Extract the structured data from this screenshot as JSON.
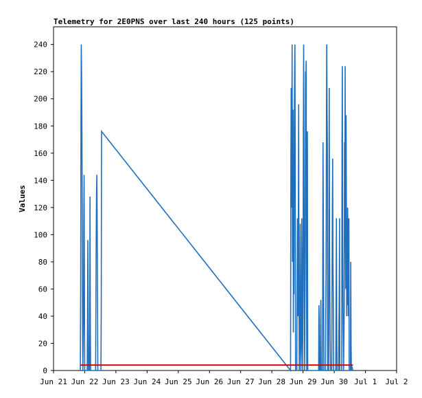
{
  "chart_data": {
    "type": "line",
    "title": "Telemetry for 2E0PNS over last 240 hours (125 points)",
    "ylabel": "Values",
    "xlabel": "",
    "ylim": [
      0,
      253
    ],
    "xlim": [
      0,
      11
    ],
    "x_ticks": [
      {
        "x": 0,
        "label": "Jun 21"
      },
      {
        "x": 1,
        "label": "Jun 22"
      },
      {
        "x": 2,
        "label": "Jun 23"
      },
      {
        "x": 3,
        "label": "Jun 24"
      },
      {
        "x": 4,
        "label": "Jun 25"
      },
      {
        "x": 5,
        "label": "Jun 26"
      },
      {
        "x": 6,
        "label": "Jun 27"
      },
      {
        "x": 7,
        "label": "Jun 28"
      },
      {
        "x": 8,
        "label": "Jun 29"
      },
      {
        "x": 9,
        "label": "Jun 30"
      },
      {
        "x": 10,
        "label": "Jul 1"
      },
      {
        "x": 11,
        "label": "Jul 2"
      }
    ],
    "y_ticks": [
      0,
      20,
      40,
      60,
      80,
      100,
      120,
      140,
      160,
      180,
      200,
      220,
      240
    ],
    "grid": false,
    "colors": {
      "series": "#1f6fbf",
      "baseline": "#e00000"
    },
    "series": [
      {
        "values": [
          [
            0.86,
            0
          ],
          [
            0.87,
            60
          ],
          [
            0.88,
            180
          ],
          [
            0.89,
            240
          ],
          [
            0.9,
            220
          ],
          [
            0.91,
            180
          ],
          [
            0.92,
            120
          ],
          [
            0.93,
            40
          ],
          [
            0.94,
            0
          ],
          [
            0.96,
            36
          ],
          [
            0.97,
            108
          ],
          [
            0.98,
            144
          ],
          [
            0.99,
            72
          ],
          [
            1.0,
            0
          ],
          [
            1.08,
            0
          ],
          [
            1.09,
            36
          ],
          [
            1.1,
            96
          ],
          [
            1.11,
            60
          ],
          [
            1.12,
            0
          ],
          [
            1.15,
            0
          ],
          [
            1.16,
            36
          ],
          [
            1.17,
            128
          ],
          [
            1.18,
            32
          ],
          [
            1.19,
            0
          ],
          [
            1.35,
            0
          ],
          [
            1.36,
            56
          ],
          [
            1.37,
            104
          ],
          [
            1.38,
            132
          ],
          [
            1.39,
            144
          ],
          [
            1.4,
            108
          ],
          [
            1.41,
            60
          ],
          [
            1.42,
            0
          ],
          [
            1.52,
            0
          ],
          [
            1.53,
            44
          ],
          [
            1.54,
            176
          ],
          [
            7.6,
            0
          ],
          [
            7.61,
            156
          ],
          [
            7.62,
            208
          ],
          [
            7.63,
            120
          ],
          [
            7.64,
            172
          ],
          [
            7.65,
            240
          ],
          [
            7.66,
            80
          ],
          [
            7.67,
            144
          ],
          [
            7.68,
            192
          ],
          [
            7.69,
            28
          ],
          [
            7.7,
            136
          ],
          [
            7.71,
            56
          ],
          [
            7.72,
            180
          ],
          [
            7.73,
            220
          ],
          [
            7.74,
            240
          ],
          [
            7.75,
            150
          ],
          [
            7.76,
            0
          ],
          [
            7.8,
            0
          ],
          [
            7.81,
            60
          ],
          [
            7.82,
            112
          ],
          [
            7.83,
            84
          ],
          [
            7.84,
            40
          ],
          [
            7.85,
            120
          ],
          [
            7.86,
            196
          ],
          [
            7.87,
            48
          ],
          [
            7.88,
            0
          ],
          [
            7.9,
            28
          ],
          [
            7.91,
            108
          ],
          [
            7.92,
            60
          ],
          [
            7.93,
            0
          ],
          [
            7.95,
            20
          ],
          [
            7.96,
            112
          ],
          [
            7.97,
            72
          ],
          [
            7.98,
            44
          ],
          [
            7.99,
            0
          ],
          [
            8.0,
            60
          ],
          [
            8.01,
            176
          ],
          [
            8.02,
            240
          ],
          [
            8.03,
            156
          ],
          [
            8.04,
            60
          ],
          [
            8.05,
            0
          ],
          [
            8.07,
            84
          ],
          [
            8.08,
            220
          ],
          [
            8.09,
            200
          ],
          [
            8.1,
            228
          ],
          [
            8.11,
            80
          ],
          [
            8.12,
            0
          ],
          [
            8.13,
            116
          ],
          [
            8.14,
            176
          ],
          [
            8.15,
            0
          ],
          [
            8.5,
            0
          ],
          [
            8.51,
            48
          ],
          [
            8.52,
            36
          ],
          [
            8.53,
            0
          ],
          [
            8.56,
            0
          ],
          [
            8.57,
            52
          ],
          [
            8.58,
            0
          ],
          [
            8.62,
            0
          ],
          [
            8.63,
            56
          ],
          [
            8.64,
            168
          ],
          [
            8.65,
            120
          ],
          [
            8.66,
            56
          ],
          [
            8.67,
            0
          ],
          [
            8.72,
            0
          ],
          [
            8.73,
            44
          ],
          [
            8.74,
            80
          ],
          [
            8.75,
            180
          ],
          [
            8.76,
            240
          ],
          [
            8.77,
            192
          ],
          [
            8.78,
            168
          ],
          [
            8.79,
            0
          ],
          [
            8.82,
            0
          ],
          [
            8.83,
            112
          ],
          [
            8.84,
            208
          ],
          [
            8.85,
            96
          ],
          [
            8.86,
            56
          ],
          [
            8.87,
            24
          ],
          [
            8.88,
            0
          ],
          [
            8.92,
            0
          ],
          [
            8.93,
            60
          ],
          [
            8.94,
            120
          ],
          [
            8.95,
            156
          ],
          [
            8.96,
            80
          ],
          [
            8.97,
            56
          ],
          [
            8.98,
            0
          ],
          [
            9.05,
            0
          ],
          [
            9.06,
            60
          ],
          [
            9.07,
            112
          ],
          [
            9.08,
            40
          ],
          [
            9.09,
            0
          ],
          [
            9.14,
            0
          ],
          [
            9.15,
            32
          ],
          [
            9.16,
            56
          ],
          [
            9.17,
            112
          ],
          [
            9.18,
            0
          ],
          [
            9.24,
            0
          ],
          [
            9.25,
            168
          ],
          [
            9.26,
            224
          ],
          [
            9.27,
            104
          ],
          [
            9.28,
            48
          ],
          [
            9.3,
            0
          ],
          [
            9.32,
            44
          ],
          [
            9.33,
            168
          ],
          [
            9.34,
            120
          ],
          [
            9.35,
            224
          ],
          [
            9.36,
            96
          ],
          [
            9.37,
            60
          ],
          [
            9.38,
            188
          ],
          [
            9.39,
            120
          ],
          [
            9.4,
            40
          ],
          [
            9.41,
            112
          ],
          [
            9.42,
            48
          ],
          [
            9.43,
            120
          ],
          [
            9.44,
            104
          ],
          [
            9.45,
            40
          ],
          [
            9.46,
            96
          ],
          [
            9.47,
            112
          ],
          [
            9.48,
            0
          ],
          [
            9.52,
            0
          ],
          [
            9.53,
            80
          ],
          [
            9.54,
            20
          ],
          [
            9.55,
            0
          ],
          [
            9.55,
            4
          ],
          [
            9.6,
            0
          ]
        ]
      },
      {
        "values": [
          [
            0.86,
            4
          ],
          [
            9.6,
            4
          ]
        ]
      }
    ]
  }
}
